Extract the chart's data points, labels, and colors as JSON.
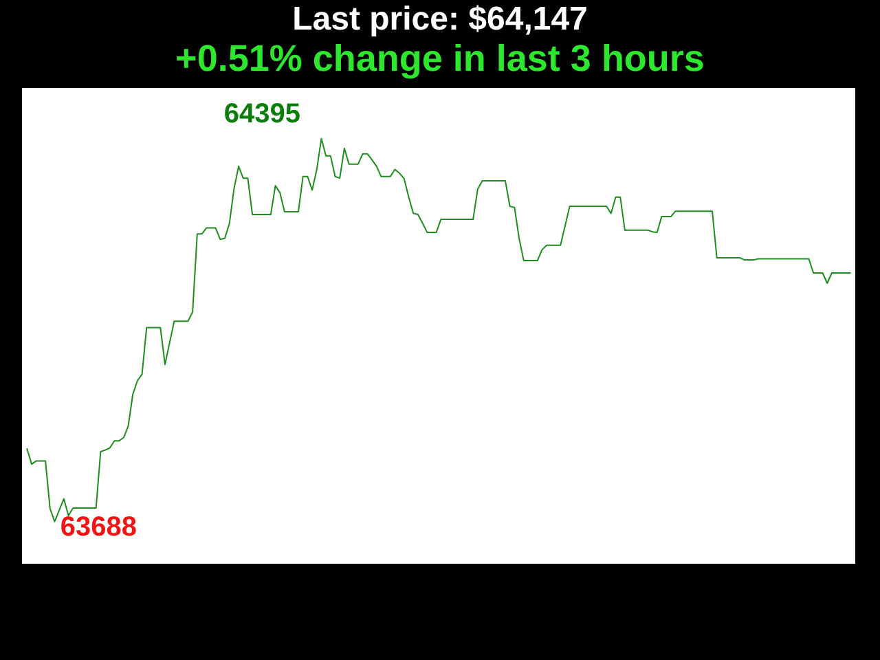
{
  "chart_data": {
    "type": "line",
    "title": "Last price: $64,147",
    "subtitle": "+0.51% change in last 3 hours",
    "categories": [
      null,
      null,
      null,
      null,
      null,
      null,
      null,
      null,
      null,
      null,
      null,
      null,
      null,
      null,
      null,
      null,
      null,
      null,
      null,
      null,
      null,
      null,
      null,
      null,
      null,
      null,
      null,
      null,
      null,
      null,
      null,
      null,
      null,
      null,
      null,
      null,
      null,
      null,
      null,
      null,
      null,
      null,
      null,
      null,
      null,
      null,
      null,
      null,
      null,
      null,
      null,
      null,
      null,
      null,
      null,
      null,
      null,
      null,
      null,
      null,
      null,
      null,
      null,
      null,
      null,
      null,
      null,
      null,
      null,
      null,
      null,
      null,
      null,
      null,
      null,
      null,
      null,
      null,
      null,
      null,
      null,
      null,
      null,
      null,
      null,
      null,
      null,
      null,
      null,
      null,
      null,
      null,
      null,
      null,
      null,
      null,
      null,
      null,
      null,
      null,
      null,
      null,
      null,
      null,
      null,
      null,
      null,
      null,
      null,
      null,
      null,
      null,
      null,
      null,
      null,
      null,
      null,
      null,
      null,
      null,
      null,
      null,
      null,
      null,
      null,
      null,
      null,
      null,
      null,
      null,
      null,
      null,
      null,
      null,
      null,
      null,
      null,
      null,
      null,
      null,
      null,
      null,
      null,
      null,
      null,
      null,
      null,
      null,
      null,
      null,
      null,
      null,
      null,
      null,
      null,
      null,
      null,
      null,
      null,
      null,
      null,
      null,
      null,
      null,
      null,
      null,
      null,
      null,
      null,
      null,
      null,
      null,
      null,
      null,
      null,
      null,
      null,
      null,
      null,
      null
    ],
    "series": [
      {
        "color": "#1e8c1e",
        "values": [
          63822,
          63794,
          63800,
          63800,
          63800,
          63712,
          63688,
          63709,
          63730,
          63699,
          63713,
          63713,
          63713,
          63713,
          63713,
          63713,
          63817,
          63820,
          63824,
          63837,
          63837,
          63843,
          63864,
          63923,
          63948,
          63960,
          64046,
          64046,
          64046,
          64046,
          63978,
          64018,
          64058,
          64058,
          64058,
          64058,
          64075,
          64219,
          64219,
          64230,
          64230,
          64230,
          64209,
          64211,
          64238,
          64302,
          64344,
          64322,
          64322,
          64255,
          64255,
          64255,
          64255,
          64255,
          64308,
          64295,
          64260,
          64260,
          64260,
          64260,
          64325,
          64325,
          64300,
          64338,
          64395,
          64363,
          64363,
          64325,
          64322,
          64377,
          64348,
          64348,
          64348,
          64367,
          64367,
          64356,
          64344,
          64325,
          64325,
          64325,
          64338,
          64331,
          64321,
          64287,
          64257,
          64255,
          64239,
          64222,
          64222,
          64222,
          64246,
          64246,
          64246,
          64246,
          64246,
          64246,
          64246,
          64246,
          64302,
          64317,
          64317,
          64317,
          64317,
          64317,
          64317,
          64270,
          64268,
          64211,
          64170,
          64170,
          64170,
          64170,
          64190,
          64198,
          64198,
          64198,
          64198,
          64234,
          64270,
          64270,
          64270,
          64270,
          64270,
          64270,
          64270,
          64270,
          64270,
          64257,
          64287,
          64287,
          64226,
          64226,
          64226,
          64226,
          64226,
          64226,
          64223,
          64222,
          64251,
          64251,
          64251,
          64261,
          64261,
          64261,
          64261,
          64261,
          64261,
          64261,
          64261,
          64261,
          64175,
          64175,
          64175,
          64175,
          64175,
          64175,
          64171,
          64171,
          64171,
          64173,
          64173,
          64173,
          64173,
          64173,
          64173,
          64173,
          64173,
          64173,
          64173,
          64173,
          64173,
          64147,
          64147,
          64147,
          64128,
          64147,
          64147,
          64147,
          64147,
          64147
        ],
        "value_labels": [
          null,
          null,
          null,
          null,
          null,
          null,
          "63688",
          null,
          null,
          null,
          null,
          null,
          null,
          null,
          null,
          null,
          null,
          null,
          null,
          null,
          null,
          null,
          null,
          null,
          null,
          null,
          null,
          null,
          null,
          null,
          null,
          null,
          null,
          null,
          null,
          null,
          null,
          null,
          null,
          null,
          null,
          null,
          null,
          null,
          null,
          null,
          null,
          null,
          null,
          null,
          null,
          null,
          null,
          null,
          null,
          null,
          null,
          null,
          null,
          null,
          null,
          null,
          null,
          null,
          "64395",
          null,
          null,
          null,
          null,
          null,
          null,
          null,
          null,
          null,
          null,
          null,
          null,
          null,
          null,
          null,
          null,
          null,
          null,
          null,
          null,
          null,
          null,
          null,
          null,
          null,
          null,
          null,
          null,
          null,
          null,
          null,
          null,
          null,
          null,
          null,
          null,
          null,
          null,
          null,
          null,
          null,
          null,
          null,
          null,
          null,
          null,
          null,
          null,
          null,
          null,
          null,
          null,
          null,
          null,
          null,
          null,
          null,
          null,
          null,
          null,
          null,
          null,
          null,
          null,
          null,
          null,
          null,
          null,
          null,
          null,
          null,
          null,
          null,
          null,
          null,
          null,
          null,
          null,
          null,
          null,
          null,
          null,
          null,
          null,
          null,
          null,
          null,
          null,
          null,
          null,
          null,
          null,
          null,
          null,
          null,
          null,
          null,
          null,
          null,
          null,
          null,
          null,
          null,
          null,
          null,
          null,
          null,
          null,
          null,
          null,
          null,
          null,
          null,
          null,
          null
        ]
      }
    ],
    "tick_labels": false,
    "marker": "none"
  }
}
